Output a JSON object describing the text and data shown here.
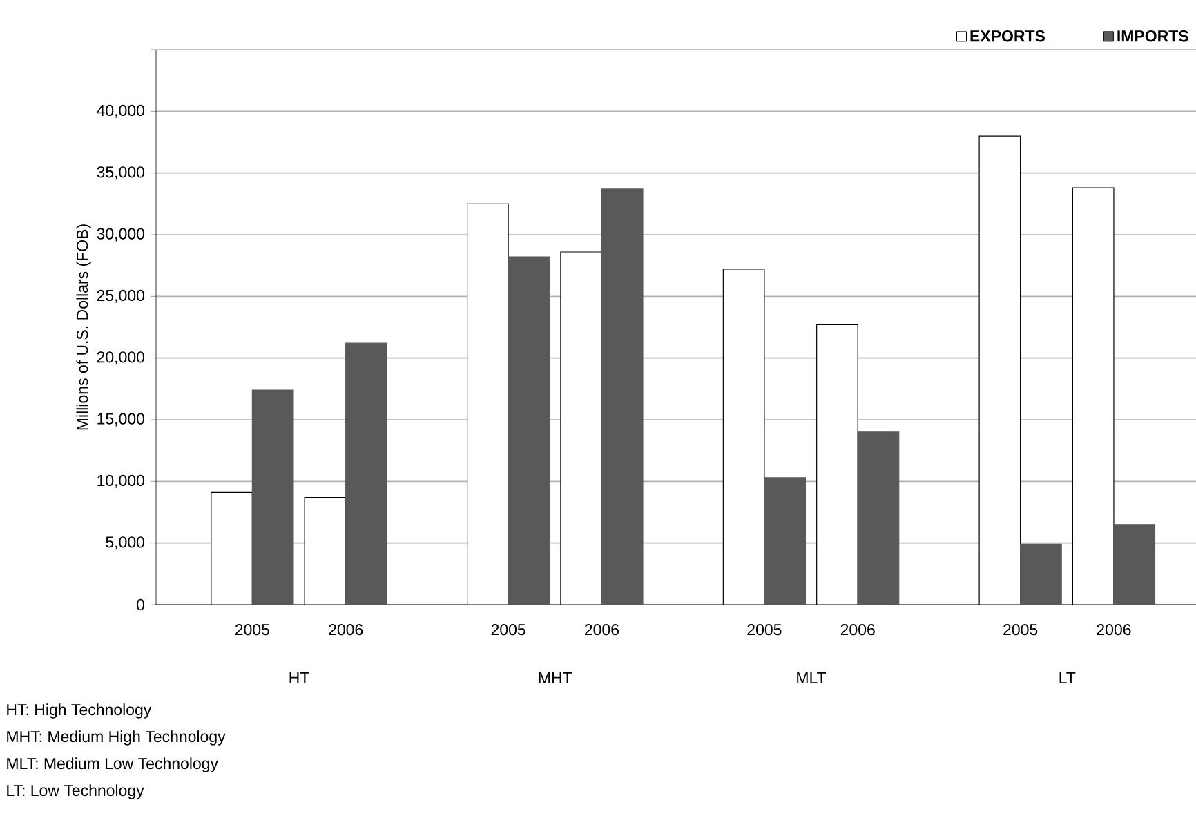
{
  "chart_data": {
    "type": "bar",
    "ylabel": "Millions of U.S. Dollars (FOB)",
    "categories": [
      "2005",
      "2006",
      "2005",
      "2006",
      "2005",
      "2006",
      "2005",
      "2006"
    ],
    "series": [
      {
        "name": "EXPORTS",
        "color": "#ffffff",
        "values": [
          9100,
          8700,
          32500,
          28600,
          27200,
          22700,
          38000,
          33800
        ]
      },
      {
        "name": "IMPORTS",
        "color": "#595959",
        "values": [
          17400,
          21200,
          28200,
          33700,
          10300,
          14000,
          4900,
          6500
        ]
      }
    ],
    "ylim": [
      0,
      45000
    ],
    "yticks": [
      {
        "value": 0,
        "label": "0"
      },
      {
        "value": 5000,
        "label": "5,000"
      },
      {
        "value": 10000,
        "label": "10,000"
      },
      {
        "value": 15000,
        "label": "15,000"
      },
      {
        "value": 20000,
        "label": "20,000"
      },
      {
        "value": 25000,
        "label": "25,000"
      },
      {
        "value": 30000,
        "label": "30,000"
      },
      {
        "value": 35000,
        "label": "35,000"
      },
      {
        "value": 40000,
        "label": "40,000"
      },
      {
        "value": 45000,
        "label": null
      }
    ],
    "grid": "y",
    "legend": "top right",
    "annotations": [
      "HT",
      "MHT",
      "MLT",
      "LT",
      "HT: High Technology",
      "MHT: Medium High Technology",
      "MLT: Medium Low Technology",
      "LT: Low Technology"
    ]
  }
}
